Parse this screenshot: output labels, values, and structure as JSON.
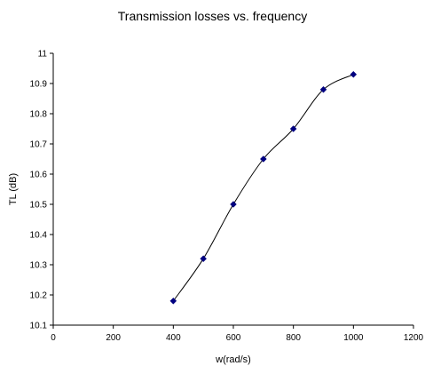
{
  "chart_data": {
    "type": "line",
    "title": "Transmission losses vs. frequency",
    "xlabel": "w(rad/s)",
    "ylabel": "TL (dB)",
    "xlim": [
      0,
      1200
    ],
    "ylim": [
      10.1,
      11
    ],
    "xticks": [
      0,
      200,
      400,
      600,
      800,
      1000,
      1200
    ],
    "yticks": [
      10.1,
      10.2,
      10.3,
      10.4,
      10.5,
      10.6,
      10.7,
      10.8,
      10.9,
      11
    ],
    "grid": false,
    "legend": "none",
    "marker": "diamond",
    "line_color": "#000000",
    "marker_color": "#000080",
    "series": [
      {
        "x": [
          400,
          500,
          600,
          700,
          800,
          900,
          1000
        ],
        "y": [
          10.18,
          10.32,
          10.5,
          10.65,
          10.75,
          10.88,
          10.93
        ]
      }
    ]
  }
}
